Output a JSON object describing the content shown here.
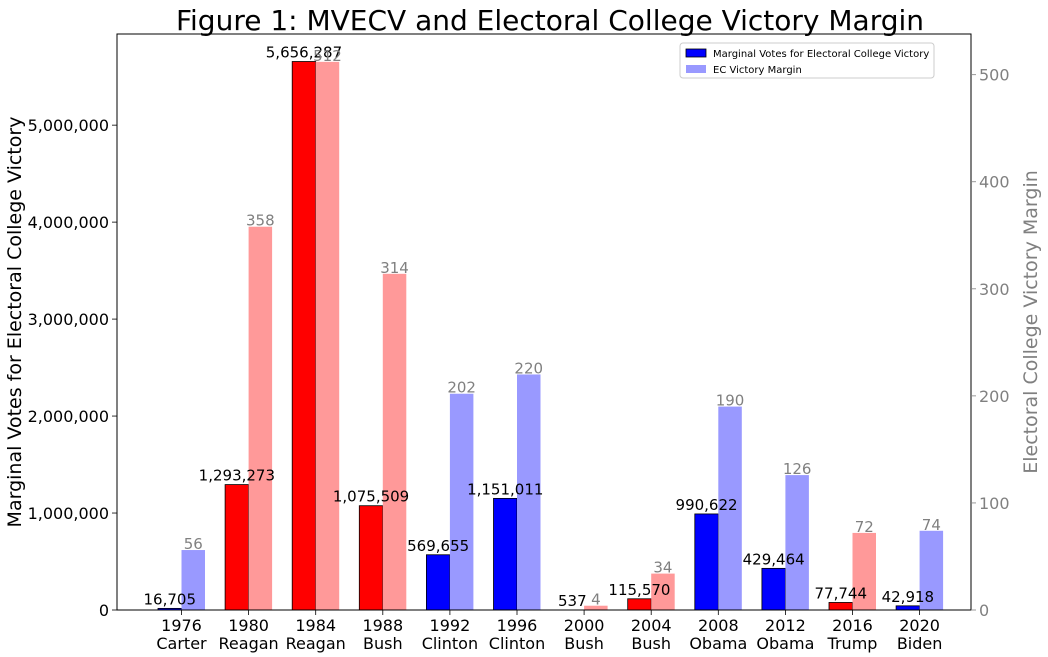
{
  "chart_data": {
    "type": "bar",
    "title": "Figure 1: MVECV and Electoral College Victory Margin",
    "ylabel_left": "Marginal Votes for Electoral College Victory",
    "ylabel_right": "Electoral College Victory Margin",
    "ylim_left": [
      0,
      5940000
    ],
    "ylim_right": [
      0,
      538
    ],
    "yticks_left": [
      0,
      1000000,
      2000000,
      3000000,
      4000000,
      5000000
    ],
    "yticks_left_labels": [
      "0",
      "1,000,000",
      "2,000,000",
      "3,000,000",
      "4,000,000",
      "5,000,000"
    ],
    "yticks_right": [
      0,
      100,
      200,
      300,
      400,
      500
    ],
    "yticks_right_labels": [
      "0",
      "100",
      "200",
      "300",
      "400",
      "500"
    ],
    "categories": [
      {
        "year": "1976",
        "name": "Carter",
        "party": "D"
      },
      {
        "year": "1980",
        "name": "Reagan",
        "party": "R"
      },
      {
        "year": "1984",
        "name": "Reagan",
        "party": "R"
      },
      {
        "year": "1988",
        "name": "Bush",
        "party": "R"
      },
      {
        "year": "1992",
        "name": "Clinton",
        "party": "D"
      },
      {
        "year": "1996",
        "name": "Clinton",
        "party": "D"
      },
      {
        "year": "2000",
        "name": "Bush",
        "party": "R"
      },
      {
        "year": "2004",
        "name": "Bush",
        "party": "R"
      },
      {
        "year": "2008",
        "name": "Obama",
        "party": "D"
      },
      {
        "year": "2012",
        "name": "Obama",
        "party": "D"
      },
      {
        "year": "2016",
        "name": "Trump",
        "party": "R"
      },
      {
        "year": "2020",
        "name": "Biden",
        "party": "D"
      }
    ],
    "series": [
      {
        "name": "Marginal Votes for Electoral College Victory",
        "axis": "left",
        "values": [
          16705,
          1293273,
          5656287,
          1075509,
          569655,
          1151011,
          537,
          115570,
          990622,
          429464,
          77744,
          42918
        ],
        "labels": [
          "16,705",
          "1,293,273",
          "5,656,287",
          "1,075,509",
          "569,655",
          "1,151,011",
          "537",
          "115,570",
          "990,622",
          "429,464",
          "77,744",
          "42,918"
        ]
      },
      {
        "name": "EC Victory Margin",
        "axis": "right",
        "values": [
          56,
          358,
          512,
          314,
          202,
          220,
          4,
          34,
          190,
          126,
          72,
          74
        ],
        "labels": [
          "56",
          "358",
          "512",
          "314",
          "202",
          "220",
          "4",
          "34",
          "190",
          "126",
          "72",
          "74"
        ]
      }
    ],
    "colors": {
      "R_votes": "#ff0000",
      "D_votes": "#0000ff",
      "R_margin": "#ff9999",
      "D_margin": "#9999ff",
      "legend_votes": "#0000ff",
      "legend_margin": "#9999ff",
      "right_axis": "#808080"
    },
    "legend_position": "top-right",
    "grid": false
  }
}
